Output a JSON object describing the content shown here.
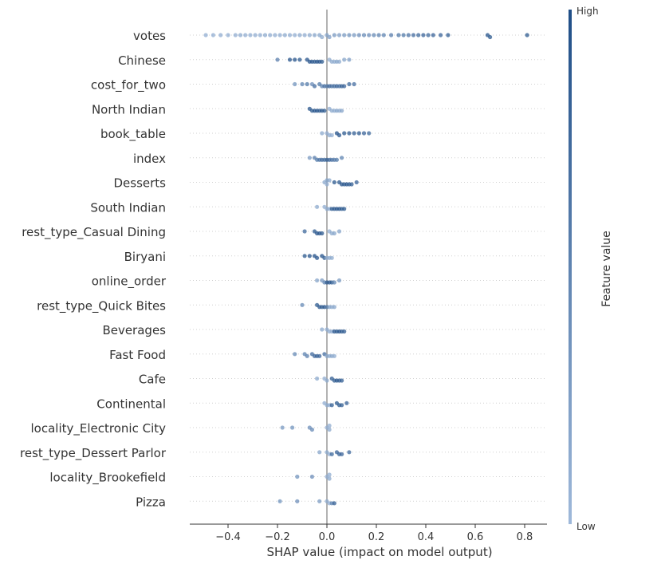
{
  "chart_data": {
    "type": "scatter",
    "subtype": "shap-beeswarm",
    "title": "",
    "xlabel": "SHAP value (impact on model output)",
    "ylabel": "",
    "xlim": [
      -0.55,
      0.88
    ],
    "x_ticks": [
      {
        "value": -0.4,
        "label": "−0.4"
      },
      {
        "value": -0.2,
        "label": "−0.2"
      },
      {
        "value": 0.0,
        "label": "0.0"
      },
      {
        "value": 0.2,
        "label": "0.2"
      },
      {
        "value": 0.4,
        "label": "0.4"
      },
      {
        "value": 0.6,
        "label": "0.6"
      },
      {
        "value": 0.8,
        "label": "0.8"
      }
    ],
    "grid": false,
    "zero_line": 0.0,
    "colorbar": {
      "label": "Feature value",
      "high_label": "High",
      "low_label": "Low",
      "high_color": "#1f4e87",
      "low_color": "#9fb9da"
    },
    "features": [
      {
        "name": "votes",
        "points": [
          [
            -0.49,
            0.1
          ],
          [
            -0.46,
            0.1
          ],
          [
            -0.43,
            0.12
          ],
          [
            -0.4,
            0.1
          ],
          [
            -0.37,
            0.12
          ],
          [
            -0.35,
            0.15
          ],
          [
            -0.33,
            0.12
          ],
          [
            -0.31,
            0.1
          ],
          [
            -0.29,
            0.12
          ],
          [
            -0.27,
            0.1
          ],
          [
            -0.25,
            0.15
          ],
          [
            -0.23,
            0.12
          ],
          [
            -0.21,
            0.1
          ],
          [
            -0.19,
            0.12
          ],
          [
            -0.17,
            0.15
          ],
          [
            -0.15,
            0.12
          ],
          [
            -0.13,
            0.1
          ],
          [
            -0.11,
            0.15
          ],
          [
            -0.09,
            0.12
          ],
          [
            -0.07,
            0.15
          ],
          [
            -0.05,
            0.18
          ],
          [
            -0.03,
            0.2
          ],
          [
            -0.02,
            0.15
          ],
          [
            0.0,
            0.2
          ],
          [
            0.01,
            0.25
          ],
          [
            0.03,
            0.3
          ],
          [
            0.05,
            0.25
          ],
          [
            0.07,
            0.3
          ],
          [
            0.09,
            0.35
          ],
          [
            0.11,
            0.3
          ],
          [
            0.13,
            0.4
          ],
          [
            0.15,
            0.45
          ],
          [
            0.17,
            0.4
          ],
          [
            0.19,
            0.45
          ],
          [
            0.21,
            0.5
          ],
          [
            0.23,
            0.5
          ],
          [
            0.26,
            0.55
          ],
          [
            0.29,
            0.6
          ],
          [
            0.31,
            0.6
          ],
          [
            0.33,
            0.65
          ],
          [
            0.35,
            0.7
          ],
          [
            0.37,
            0.75
          ],
          [
            0.39,
            0.8
          ],
          [
            0.41,
            0.75
          ],
          [
            0.43,
            0.8
          ],
          [
            0.46,
            0.8
          ],
          [
            0.49,
            0.85
          ],
          [
            0.65,
            0.95
          ],
          [
            0.66,
            0.9
          ],
          [
            0.81,
            0.9
          ]
        ]
      },
      {
        "name": "Chinese",
        "points": [
          [
            -0.2,
            0.55
          ],
          [
            -0.15,
            0.95
          ],
          [
            -0.13,
            0.95
          ],
          [
            -0.11,
            0.9
          ],
          [
            -0.08,
            0.95
          ],
          [
            -0.07,
            0.95
          ],
          [
            -0.06,
            0.95
          ],
          [
            -0.05,
            0.9
          ],
          [
            -0.04,
            0.95
          ],
          [
            -0.03,
            0.95
          ],
          [
            -0.02,
            0.9
          ],
          [
            0.01,
            0.1
          ],
          [
            0.02,
            0.15
          ],
          [
            0.03,
            0.15
          ],
          [
            0.04,
            0.2
          ],
          [
            0.05,
            0.15
          ],
          [
            0.07,
            0.2
          ],
          [
            0.09,
            0.25
          ]
        ]
      },
      {
        "name": "cost_for_two",
        "points": [
          [
            -0.13,
            0.35
          ],
          [
            -0.1,
            0.5
          ],
          [
            -0.08,
            0.6
          ],
          [
            -0.06,
            0.4
          ],
          [
            -0.05,
            0.7
          ],
          [
            -0.03,
            0.6
          ],
          [
            -0.02,
            0.5
          ],
          [
            -0.01,
            0.7
          ],
          [
            0.0,
            0.6
          ],
          [
            0.01,
            0.8
          ],
          [
            0.02,
            0.7
          ],
          [
            0.03,
            0.75
          ],
          [
            0.04,
            0.8
          ],
          [
            0.05,
            0.7
          ],
          [
            0.06,
            0.85
          ],
          [
            0.07,
            0.8
          ],
          [
            0.09,
            0.75
          ],
          [
            0.11,
            0.7
          ]
        ]
      },
      {
        "name": "North Indian",
        "points": [
          [
            -0.07,
            0.95
          ],
          [
            -0.06,
            0.9
          ],
          [
            -0.05,
            0.95
          ],
          [
            -0.04,
            0.95
          ],
          [
            -0.03,
            0.9
          ],
          [
            -0.02,
            0.95
          ],
          [
            -0.01,
            0.9
          ],
          [
            0.01,
            0.1
          ],
          [
            0.02,
            0.15
          ],
          [
            0.03,
            0.15
          ],
          [
            0.04,
            0.2
          ],
          [
            0.05,
            0.15
          ],
          [
            0.06,
            0.2
          ]
        ]
      },
      {
        "name": "book_table",
        "points": [
          [
            -0.02,
            0.15
          ],
          [
            0.0,
            0.1
          ],
          [
            0.01,
            0.15
          ],
          [
            0.02,
            0.1
          ],
          [
            0.04,
            0.95
          ],
          [
            0.05,
            0.95
          ],
          [
            0.07,
            0.9
          ],
          [
            0.09,
            0.9
          ],
          [
            0.11,
            0.85
          ],
          [
            0.13,
            0.9
          ],
          [
            0.15,
            0.8
          ],
          [
            0.17,
            0.75
          ]
        ]
      },
      {
        "name": "index",
        "points": [
          [
            -0.07,
            0.3
          ],
          [
            -0.05,
            0.55
          ],
          [
            -0.04,
            0.6
          ],
          [
            -0.03,
            0.7
          ],
          [
            -0.02,
            0.8
          ],
          [
            -0.01,
            0.75
          ],
          [
            0.0,
            0.85
          ],
          [
            0.01,
            0.8
          ],
          [
            0.02,
            0.7
          ],
          [
            0.03,
            0.65
          ],
          [
            0.04,
            0.6
          ],
          [
            0.06,
            0.5
          ]
        ]
      },
      {
        "name": "Desserts",
        "points": [
          [
            -0.01,
            0.15
          ],
          [
            0.0,
            0.1
          ],
          [
            0.0,
            0.2
          ],
          [
            0.01,
            0.15
          ],
          [
            0.03,
            0.9
          ],
          [
            0.05,
            0.9
          ],
          [
            0.06,
            0.95
          ],
          [
            0.07,
            0.9
          ],
          [
            0.08,
            0.95
          ],
          [
            0.09,
            0.9
          ],
          [
            0.1,
            0.85
          ],
          [
            0.12,
            0.8
          ]
        ]
      },
      {
        "name": "South Indian",
        "points": [
          [
            -0.04,
            0.15
          ],
          [
            -0.01,
            0.1
          ],
          [
            0.0,
            0.15
          ],
          [
            0.01,
            0.1
          ],
          [
            0.02,
            0.9
          ],
          [
            0.03,
            0.95
          ],
          [
            0.04,
            0.95
          ],
          [
            0.05,
            0.95
          ],
          [
            0.06,
            0.9
          ],
          [
            0.07,
            0.9
          ]
        ]
      },
      {
        "name": "rest_type_Casual Dining",
        "points": [
          [
            -0.09,
            0.75
          ],
          [
            -0.05,
            0.9
          ],
          [
            -0.04,
            0.95
          ],
          [
            -0.03,
            0.95
          ],
          [
            -0.02,
            0.9
          ],
          [
            0.01,
            0.1
          ],
          [
            0.02,
            0.15
          ],
          [
            0.03,
            0.2
          ],
          [
            0.05,
            0.2
          ]
        ]
      },
      {
        "name": "Biryani",
        "points": [
          [
            -0.09,
            0.9
          ],
          [
            -0.07,
            0.95
          ],
          [
            -0.05,
            0.95
          ],
          [
            -0.04,
            0.95
          ],
          [
            -0.02,
            0.95
          ],
          [
            -0.01,
            0.9
          ],
          [
            0.0,
            0.1
          ],
          [
            0.01,
            0.15
          ],
          [
            0.02,
            0.15
          ]
        ]
      },
      {
        "name": "online_order",
        "points": [
          [
            -0.04,
            0.2
          ],
          [
            -0.02,
            0.3
          ],
          [
            -0.01,
            0.5
          ],
          [
            0.0,
            0.9
          ],
          [
            0.01,
            0.95
          ],
          [
            0.02,
            0.9
          ],
          [
            0.03,
            0.5
          ],
          [
            0.05,
            0.3
          ]
        ]
      },
      {
        "name": "rest_type_Quick Bites",
        "points": [
          [
            -0.1,
            0.45
          ],
          [
            -0.04,
            0.9
          ],
          [
            -0.03,
            0.95
          ],
          [
            -0.02,
            0.9
          ],
          [
            -0.01,
            0.95
          ],
          [
            0.0,
            0.6
          ],
          [
            0.01,
            0.2
          ],
          [
            0.02,
            0.15
          ],
          [
            0.03,
            0.2
          ]
        ]
      },
      {
        "name": "Beverages",
        "points": [
          [
            -0.02,
            0.15
          ],
          [
            0.0,
            0.1
          ],
          [
            0.01,
            0.15
          ],
          [
            0.02,
            0.1
          ],
          [
            0.03,
            0.95
          ],
          [
            0.04,
            0.9
          ],
          [
            0.05,
            0.95
          ],
          [
            0.06,
            0.9
          ],
          [
            0.07,
            0.85
          ]
        ]
      },
      {
        "name": "Fast Food",
        "points": [
          [
            -0.13,
            0.45
          ],
          [
            -0.09,
            0.5
          ],
          [
            -0.08,
            0.55
          ],
          [
            -0.06,
            0.7
          ],
          [
            -0.05,
            0.8
          ],
          [
            -0.04,
            0.85
          ],
          [
            -0.03,
            0.8
          ],
          [
            -0.01,
            0.7
          ],
          [
            0.0,
            0.2
          ],
          [
            0.01,
            0.15
          ],
          [
            0.02,
            0.2
          ],
          [
            0.03,
            0.15
          ]
        ]
      },
      {
        "name": "Cafe",
        "points": [
          [
            -0.04,
            0.15
          ],
          [
            -0.01,
            0.1
          ],
          [
            0.0,
            0.15
          ],
          [
            0.02,
            0.85
          ],
          [
            0.03,
            0.9
          ],
          [
            0.04,
            0.95
          ],
          [
            0.05,
            0.9
          ],
          [
            0.06,
            0.85
          ]
        ]
      },
      {
        "name": "Continental",
        "points": [
          [
            -0.01,
            0.1
          ],
          [
            0.0,
            0.15
          ],
          [
            0.01,
            0.1
          ],
          [
            0.02,
            0.85
          ],
          [
            0.04,
            0.9
          ],
          [
            0.05,
            0.9
          ],
          [
            0.06,
            0.85
          ],
          [
            0.08,
            0.8
          ]
        ]
      },
      {
        "name": "locality_Electronic City",
        "points": [
          [
            -0.18,
            0.3
          ],
          [
            -0.14,
            0.35
          ],
          [
            -0.07,
            0.4
          ],
          [
            -0.06,
            0.45
          ],
          [
            0.0,
            0.1
          ],
          [
            0.01,
            0.15
          ],
          [
            0.01,
            0.1
          ]
        ]
      },
      {
        "name": "rest_type_Dessert Parlor",
        "points": [
          [
            -0.03,
            0.2
          ],
          [
            0.0,
            0.15
          ],
          [
            0.01,
            0.1
          ],
          [
            0.02,
            0.75
          ],
          [
            0.04,
            0.8
          ],
          [
            0.05,
            0.85
          ],
          [
            0.06,
            0.8
          ],
          [
            0.09,
            0.75
          ]
        ]
      },
      {
        "name": "locality_Brookefield",
        "points": [
          [
            -0.12,
            0.35
          ],
          [
            -0.06,
            0.4
          ],
          [
            0.0,
            0.1
          ],
          [
            0.01,
            0.15
          ],
          [
            0.01,
            0.1
          ]
        ]
      },
      {
        "name": "Pizza",
        "points": [
          [
            -0.19,
            0.35
          ],
          [
            -0.12,
            0.4
          ],
          [
            -0.03,
            0.3
          ],
          [
            0.0,
            0.15
          ],
          [
            0.01,
            0.1
          ],
          [
            0.02,
            0.5
          ],
          [
            0.03,
            0.85
          ]
        ]
      }
    ]
  }
}
